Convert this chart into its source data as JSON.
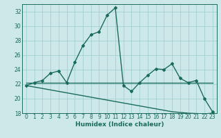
{
  "xlabel": "Humidex (Indice chaleur)",
  "background_color": "#cce8e8",
  "grid_color": "#99cccc",
  "line_color": "#1a6b5a",
  "x_values": [
    0,
    1,
    2,
    3,
    4,
    5,
    6,
    7,
    8,
    9,
    10,
    11,
    12,
    13,
    14,
    15,
    16,
    17,
    18,
    19,
    20,
    21,
    22,
    23
  ],
  "curve1_y": [
    21.8,
    22.2,
    22.5,
    23.5,
    23.8,
    22.2,
    25.0,
    27.3,
    28.8,
    29.2,
    31.5,
    32.5,
    21.8,
    21.0,
    22.2,
    23.2,
    24.1,
    24.0,
    24.8,
    22.8,
    22.2,
    22.5,
    20.0,
    18.2
  ],
  "curve2_y": [
    22.2,
    22.2,
    22.2,
    22.2,
    22.2,
    22.2,
    22.2,
    22.2,
    22.2,
    22.2,
    22.2,
    22.2,
    22.2,
    22.2,
    22.2,
    22.2,
    22.2,
    22.2,
    22.2,
    22.2,
    22.2,
    22.2,
    22.2,
    22.2
  ],
  "curve3_y": [
    21.8,
    21.6,
    21.4,
    21.2,
    21.0,
    20.8,
    20.6,
    20.4,
    20.2,
    20.0,
    19.8,
    19.6,
    19.4,
    19.2,
    19.0,
    18.8,
    18.6,
    18.4,
    18.2,
    18.1,
    18.0,
    17.95,
    17.9,
    18.0
  ],
  "ylim": [
    18,
    33
  ],
  "xlim": [
    -0.5,
    23.5
  ],
  "yticks": [
    18,
    20,
    22,
    24,
    26,
    28,
    30,
    32
  ],
  "xticks": [
    0,
    1,
    2,
    3,
    4,
    5,
    6,
    7,
    8,
    9,
    10,
    11,
    12,
    13,
    14,
    15,
    16,
    17,
    18,
    19,
    20,
    21,
    22,
    23
  ],
  "xtick_labels": [
    "0",
    "1",
    "2",
    "3",
    "4",
    "5",
    "6",
    "7",
    "8",
    "9",
    "10",
    "11",
    "12",
    "13",
    "14",
    "15",
    "16",
    "17",
    "18",
    "19",
    "20",
    "21",
    "22",
    "23"
  ],
  "marker": "D",
  "marker_size": 2.0,
  "line_width": 1.0,
  "tick_fontsize": 5.5,
  "xlabel_fontsize": 6.5
}
